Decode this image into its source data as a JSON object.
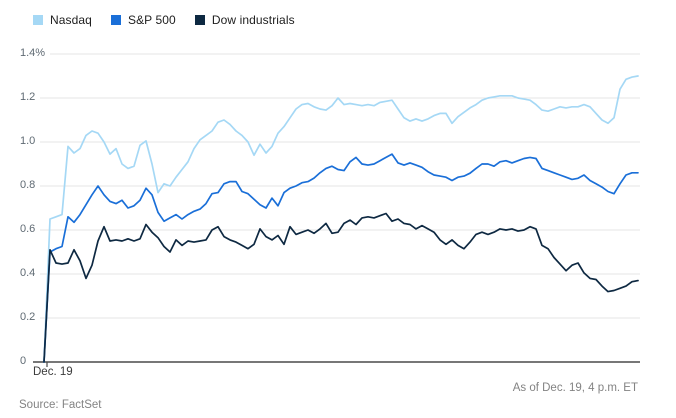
{
  "chart_data": {
    "type": "line",
    "title": "",
    "unit": "percent change",
    "grid": true,
    "legend_position": "top-left",
    "x_axis": {
      "tick_label": "Dec. 19",
      "description": "trading session of Dec. 19"
    },
    "y_axis": {
      "range": [
        0,
        1.4
      ],
      "ticks": [
        {
          "label": "1.4%",
          "value": 1.4
        },
        {
          "label": "1.2",
          "value": 1.2
        },
        {
          "label": "1.0",
          "value": 1.0
        },
        {
          "label": "0.8",
          "value": 0.8
        },
        {
          "label": "0.6",
          "value": 0.6
        },
        {
          "label": "0.4",
          "value": 0.4
        },
        {
          "label": "0.2",
          "value": 0.2
        },
        {
          "label": "0",
          "value": 0
        }
      ]
    },
    "as_of": "As of Dec. 19, 4 p.m. ET",
    "source": "Source: FactSet",
    "colors": {
      "nasdaq": "#a5d8f5",
      "sp500": "#1a6fd8",
      "dow": "#0e2942",
      "gridline": "#e6e6e6",
      "axis": "#4a4a4a"
    },
    "series": [
      {
        "key": "nasdaq",
        "name": "Nasdaq",
        "color": "#a5d8f5",
        "values": [
          0,
          0.65,
          0.66,
          0.67,
          0.98,
          0.95,
          0.97,
          1.03,
          1.05,
          1.04,
          1,
          0.945,
          0.97,
          0.9,
          0.88,
          0.89,
          0.985,
          1.005,
          0.9,
          0.77,
          0.81,
          0.8,
          0.84,
          0.875,
          0.91,
          0.97,
          1.01,
          1.03,
          1.05,
          1.09,
          1.1,
          1.08,
          1.05,
          1.03,
          1,
          0.94,
          0.99,
          0.95,
          0.98,
          1.04,
          1.07,
          1.11,
          1.15,
          1.17,
          1.175,
          1.16,
          1.15,
          1.145,
          1.165,
          1.2,
          1.17,
          1.175,
          1.17,
          1.165,
          1.17,
          1.165,
          1.18,
          1.185,
          1.19,
          1.15,
          1.11,
          1.095,
          1.105,
          1.095,
          1.105,
          1.12,
          1.13,
          1.13,
          1.085,
          1.115,
          1.135,
          1.155,
          1.17,
          1.19,
          1.2,
          1.205,
          1.21,
          1.21,
          1.21,
          1.2,
          1.195,
          1.19,
          1.17,
          1.145,
          1.14,
          1.15,
          1.16,
          1.155,
          1.16,
          1.16,
          1.17,
          1.16,
          1.13,
          1.1,
          1.085,
          1.11,
          1.24,
          1.285,
          1.295,
          1.3
        ]
      },
      {
        "key": "sp500",
        "name": "S&P 500",
        "color": "#1a6fd8",
        "values": [
          0,
          0.5,
          0.515,
          0.525,
          0.66,
          0.635,
          0.67,
          0.715,
          0.76,
          0.8,
          0.76,
          0.73,
          0.72,
          0.735,
          0.7,
          0.71,
          0.735,
          0.79,
          0.76,
          0.68,
          0.64,
          0.655,
          0.67,
          0.65,
          0.67,
          0.685,
          0.695,
          0.72,
          0.765,
          0.77,
          0.81,
          0.82,
          0.82,
          0.775,
          0.765,
          0.74,
          0.715,
          0.7,
          0.745,
          0.71,
          0.77,
          0.79,
          0.8,
          0.815,
          0.82,
          0.836,
          0.86,
          0.88,
          0.89,
          0.875,
          0.87,
          0.91,
          0.93,
          0.9,
          0.895,
          0.9,
          0.915,
          0.93,
          0.945,
          0.905,
          0.895,
          0.905,
          0.895,
          0.885,
          0.865,
          0.85,
          0.845,
          0.84,
          0.825,
          0.84,
          0.845,
          0.858,
          0.88,
          0.9,
          0.9,
          0.89,
          0.91,
          0.915,
          0.905,
          0.915,
          0.925,
          0.93,
          0.925,
          0.88,
          0.87,
          0.86,
          0.85,
          0.84,
          0.83,
          0.835,
          0.85,
          0.825,
          0.81,
          0.795,
          0.775,
          0.765,
          0.81,
          0.85,
          0.86,
          0.86
        ]
      },
      {
        "key": "dow",
        "name": "Dow industrials",
        "color": "#0e2942",
        "values": [
          0,
          0.51,
          0.45,
          0.445,
          0.45,
          0.51,
          0.46,
          0.38,
          0.44,
          0.55,
          0.615,
          0.55,
          0.555,
          0.55,
          0.56,
          0.55,
          0.56,
          0.625,
          0.59,
          0.565,
          0.525,
          0.5,
          0.555,
          0.53,
          0.55,
          0.545,
          0.55,
          0.555,
          0.6,
          0.615,
          0.57,
          0.555,
          0.545,
          0.53,
          0.515,
          0.535,
          0.605,
          0.57,
          0.555,
          0.575,
          0.535,
          0.615,
          0.58,
          0.59,
          0.6,
          0.585,
          0.605,
          0.63,
          0.585,
          0.59,
          0.63,
          0.645,
          0.625,
          0.655,
          0.66,
          0.655,
          0.665,
          0.675,
          0.64,
          0.65,
          0.63,
          0.625,
          0.605,
          0.62,
          0.605,
          0.59,
          0.555,
          0.535,
          0.555,
          0.53,
          0.515,
          0.545,
          0.58,
          0.59,
          0.58,
          0.59,
          0.605,
          0.6,
          0.605,
          0.595,
          0.6,
          0.615,
          0.605,
          0.53,
          0.515,
          0.475,
          0.445,
          0.415,
          0.44,
          0.45,
          0.405,
          0.38,
          0.375,
          0.345,
          0.32,
          0.325,
          0.335,
          0.345,
          0.365,
          0.37
        ]
      }
    ]
  }
}
